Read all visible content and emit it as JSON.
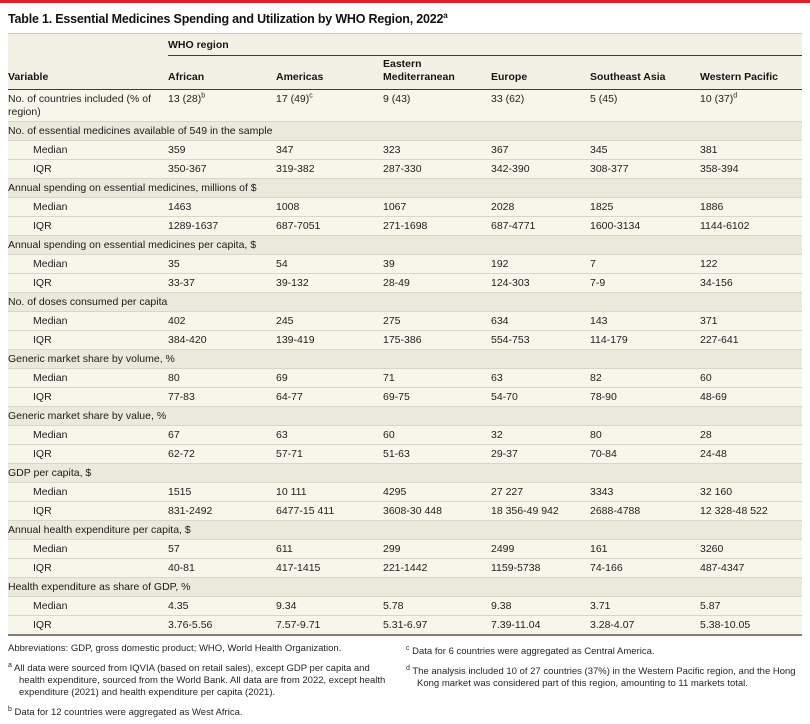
{
  "colors": {
    "top_rule_red": "#e41d2a",
    "header_band": "#f3f1e5",
    "row_light": "#f7f6eb",
    "row_section": "#ebe9db",
    "row_line": "#d8d6c8",
    "dark_rule": "#3c3b37"
  },
  "title": {
    "text": "Table 1. Essential Medicines Spending and Utilization by WHO Region, 2022",
    "sup": "a"
  },
  "table": {
    "spanner": "WHO region",
    "variable_header": "Variable",
    "region_columns": [
      "African",
      "Americas",
      "Eastern Mediterranean",
      "Europe",
      "Southeast Asia",
      "Western Pacific"
    ],
    "rows": [
      {
        "type": "row2",
        "label": "No. of countries included (% of region)",
        "cells": [
          "13 (28)",
          "17 (49)",
          "9 (43)",
          "33 (62)",
          "5 (45)",
          "10 (37)"
        ],
        "sups": [
          "b",
          "c",
          "",
          "",
          "",
          "d"
        ]
      },
      {
        "type": "section",
        "label": "No. of essential medicines available of 549 in the sample"
      },
      {
        "type": "sub",
        "label": "Median",
        "cells": [
          "359",
          "347",
          "323",
          "367",
          "345",
          "381"
        ]
      },
      {
        "type": "sub",
        "label": "IQR",
        "cells": [
          "350-367",
          "319-382",
          "287-330",
          "342-390",
          "308-377",
          "358-394"
        ]
      },
      {
        "type": "section",
        "label": "Annual spending on essential medicines, millions of $"
      },
      {
        "type": "sub",
        "label": "Median",
        "cells": [
          "1463",
          "1008",
          "1067",
          "2028",
          "1825",
          "1886"
        ]
      },
      {
        "type": "sub",
        "label": "IQR",
        "cells": [
          "1289-1637",
          "687-7051",
          "271-1698",
          "687-4771",
          "1600-3134",
          "1144-6102"
        ]
      },
      {
        "type": "section",
        "label": "Annual spending on essential medicines per capita, $"
      },
      {
        "type": "sub",
        "label": "Median",
        "cells": [
          "35",
          "54",
          "39",
          "192",
          "7",
          "122"
        ]
      },
      {
        "type": "sub",
        "label": "IQR",
        "cells": [
          "33-37",
          "39-132",
          "28-49",
          "124-303",
          "7-9",
          "34-156"
        ]
      },
      {
        "type": "section",
        "label": "No. of doses consumed per capita"
      },
      {
        "type": "sub",
        "label": "Median",
        "cells": [
          "402",
          "245",
          "275",
          "634",
          "143",
          "371"
        ]
      },
      {
        "type": "sub",
        "label": "IQR",
        "cells": [
          "384-420",
          "139-419",
          "175-386",
          "554-753",
          "114-179",
          "227-641"
        ]
      },
      {
        "type": "section",
        "label": "Generic market share by volume, %"
      },
      {
        "type": "sub",
        "label": "Median",
        "cells": [
          "80",
          "69",
          "71",
          "63",
          "82",
          "60"
        ]
      },
      {
        "type": "sub",
        "label": "IQR",
        "cells": [
          "77-83",
          "64-77",
          "69-75",
          "54-70",
          "78-90",
          "48-69"
        ]
      },
      {
        "type": "section",
        "label": "Generic market share by value, %"
      },
      {
        "type": "sub",
        "label": "Median",
        "cells": [
          "67",
          "63",
          "60",
          "32",
          "80",
          "28"
        ]
      },
      {
        "type": "sub",
        "label": "IQR",
        "cells": [
          "62-72",
          "57-71",
          "51-63",
          "29-37",
          "70-84",
          "24-48"
        ]
      },
      {
        "type": "section",
        "label": "GDP per capita, $"
      },
      {
        "type": "sub",
        "label": "Median",
        "cells": [
          "1515",
          "10 111",
          "4295",
          "27 227",
          "3343",
          "32 160"
        ]
      },
      {
        "type": "sub",
        "label": "IQR",
        "cells": [
          "831-2492",
          "6477-15 411",
          "3608-30 448",
          "18 356-49 942",
          "2688-4788",
          "12 328-48 522"
        ]
      },
      {
        "type": "section",
        "label": "Annual health expenditure per capita, $"
      },
      {
        "type": "sub",
        "label": "Median",
        "cells": [
          "57",
          "611",
          "299",
          "2499",
          "161",
          "3260"
        ]
      },
      {
        "type": "sub",
        "label": "IQR",
        "cells": [
          "40-81",
          "417-1415",
          "221-1442",
          "1159-5738",
          "74-166",
          "487-4347"
        ]
      },
      {
        "type": "section",
        "label": "Health expenditure as share of GDP, %"
      },
      {
        "type": "sub",
        "label": "Median",
        "cells": [
          "4.35",
          "9.34",
          "5.78",
          "9.38",
          "3.71",
          "5.87"
        ]
      },
      {
        "type": "sub",
        "label": "IQR",
        "cells": [
          "3.76-5.56",
          "7.57-9.71",
          "5.31-6.97",
          "7.39-11.04",
          "3.28-4.07",
          "5.38-10.05"
        ]
      }
    ]
  },
  "footnotes": {
    "abbreviations": "Abbreviations: GDP, gross domestic product; WHO, World Health Organization.",
    "left": [
      {
        "sup": "a",
        "text": "All data were sourced from IQVIA (based on retail sales), except GDP per capita and health expenditure, sourced from the World Bank. All data are from 2022, except health expenditure (2021) and health expenditure per capita (2021)."
      },
      {
        "sup": "b",
        "text": "Data for 12 countries were aggregated as West Africa."
      }
    ],
    "right": [
      {
        "sup": "c",
        "text": "Data for 6 countries were aggregated as Central America."
      },
      {
        "sup": "d",
        "text": "The analysis included 10 of 27 countries (37%) in the Western Pacific region, and the Hong Kong market was considered part of this region, amounting to 11 markets total."
      }
    ]
  }
}
